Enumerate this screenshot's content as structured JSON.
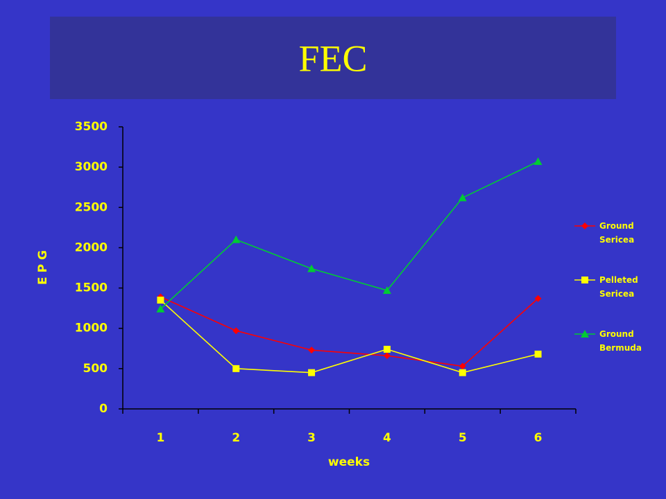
{
  "chart_data": {
    "type": "line",
    "title": "FEC",
    "categories": [
      "1",
      "2",
      "3",
      "4",
      "5",
      "6"
    ],
    "x_label": "weeks",
    "y_label": "E P G",
    "series": [
      {
        "name": "Ground Sericea",
        "color": "#ff0000",
        "marker": "diamond",
        "values": [
          1390,
          970,
          730,
          660,
          530,
          1370
        ]
      },
      {
        "name": "Pelleted Sericea",
        "color": "#ffff00",
        "marker": "square",
        "values": [
          1350,
          500,
          450,
          740,
          450,
          680
        ]
      },
      {
        "name": "Ground Bermuda",
        "color": "#00cc33",
        "marker": "triangle",
        "values": [
          1240,
          2100,
          1740,
          1470,
          2620,
          3070
        ]
      }
    ],
    "ylim": [
      0,
      3500
    ],
    "yticks": [
      0,
      500,
      1000,
      1500,
      2000,
      2500,
      3000,
      3500
    ],
    "grid": false,
    "legend": "right"
  }
}
